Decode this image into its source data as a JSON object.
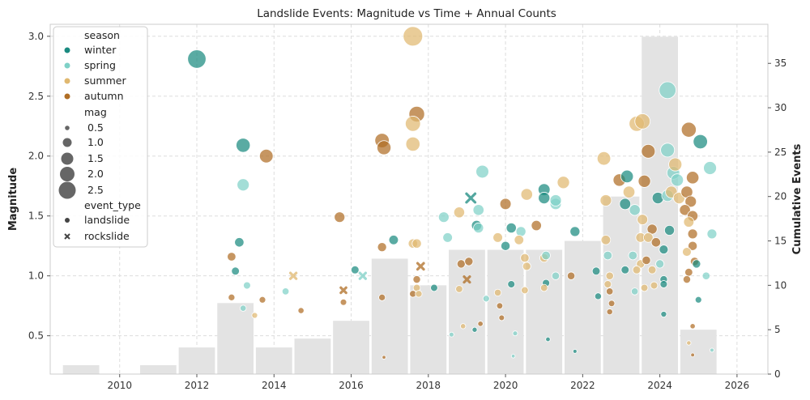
{
  "chart_data": {
    "type": "scatter",
    "title": "Landslide Events: Magnitude vs Time + Annual Counts",
    "xlabel": "",
    "ylabel": "Magnitude",
    "y2label": "Cumulative Events",
    "xlim": [
      2008.2,
      2026.8
    ],
    "ylim": [
      0.18,
      3.1
    ],
    "y2lim": [
      0,
      39.4
    ],
    "xticks": [
      "2010",
      "2012",
      "2014",
      "2016",
      "2018",
      "2020",
      "2022",
      "2024",
      "2026"
    ],
    "yticks": [
      "0.5",
      "1.0",
      "1.5",
      "2.0",
      "2.5",
      "3.0"
    ],
    "y2ticks": [
      "0",
      "5",
      "10",
      "15",
      "20",
      "25",
      "30",
      "35"
    ],
    "grid": true,
    "legend_position": "top-left",
    "colors": {
      "winter": "#1a8a80",
      "spring": "#7fd1c7",
      "summer": "#e0b870",
      "autumn": "#b06e25",
      "bars": "#e3e3e3",
      "size_legend": "#666666"
    },
    "legend": {
      "season_title": "season",
      "seasons": [
        "winter",
        "spring",
        "summer",
        "autumn"
      ],
      "mag_title": "mag",
      "mag_sizes": [
        "0.5",
        "1.0",
        "1.5",
        "2.0",
        "2.5"
      ],
      "event_type_title": "event_type",
      "event_types": [
        "landslide",
        "rockslide"
      ]
    },
    "bars": {
      "name": "Cumulative Events",
      "years": [
        2009,
        2010,
        2011,
        2012,
        2013,
        2014,
        2015,
        2016,
        2017,
        2018,
        2019,
        2020,
        2021,
        2022,
        2023,
        2024,
        2025
      ],
      "values": [
        1,
        0,
        1,
        3,
        8,
        3,
        4,
        6,
        13,
        10,
        14,
        14,
        14,
        15,
        20,
        38,
        5
      ]
    },
    "points": [
      {
        "x": 2012.0,
        "y": 2.81,
        "s": "winter",
        "t": "landslide"
      },
      {
        "x": 2013.2,
        "y": 2.09,
        "s": "winter",
        "t": "landslide"
      },
      {
        "x": 2013.2,
        "y": 1.76,
        "s": "spring",
        "t": "landslide"
      },
      {
        "x": 2013.8,
        "y": 2.0,
        "s": "autumn",
        "t": "landslide"
      },
      {
        "x": 2013.1,
        "y": 1.28,
        "s": "winter",
        "t": "landslide"
      },
      {
        "x": 2012.9,
        "y": 1.16,
        "s": "autumn",
        "t": "landslide"
      },
      {
        "x": 2013.0,
        "y": 1.04,
        "s": "winter",
        "t": "landslide"
      },
      {
        "x": 2013.3,
        "y": 0.92,
        "s": "spring",
        "t": "landslide"
      },
      {
        "x": 2012.9,
        "y": 0.82,
        "s": "autumn",
        "t": "landslide"
      },
      {
        "x": 2013.2,
        "y": 0.73,
        "s": "spring",
        "t": "landslide"
      },
      {
        "x": 2013.5,
        "y": 0.67,
        "s": "summer",
        "t": "landslide"
      },
      {
        "x": 2013.7,
        "y": 0.8,
        "s": "autumn",
        "t": "landslide"
      },
      {
        "x": 2014.3,
        "y": 0.87,
        "s": "spring",
        "t": "landslide"
      },
      {
        "x": 2014.5,
        "y": 1.0,
        "s": "summer",
        "t": "rockslide"
      },
      {
        "x": 2014.7,
        "y": 0.71,
        "s": "autumn",
        "t": "landslide"
      },
      {
        "x": 2015.7,
        "y": 1.49,
        "s": "autumn",
        "t": "landslide"
      },
      {
        "x": 2016.1,
        "y": 1.05,
        "s": "winter",
        "t": "landslide"
      },
      {
        "x": 2016.3,
        "y": 1.0,
        "s": "spring",
        "t": "rockslide"
      },
      {
        "x": 2015.8,
        "y": 0.88,
        "s": "autumn",
        "t": "rockslide"
      },
      {
        "x": 2015.8,
        "y": 0.78,
        "s": "autumn",
        "t": "landslide"
      },
      {
        "x": 2016.8,
        "y": 2.13,
        "s": "autumn",
        "t": "landslide"
      },
      {
        "x": 2016.85,
        "y": 2.07,
        "s": "autumn",
        "t": "landslide"
      },
      {
        "x": 2016.8,
        "y": 1.24,
        "s": "autumn",
        "t": "landslide"
      },
      {
        "x": 2017.1,
        "y": 1.3,
        "s": "winter",
        "t": "landslide"
      },
      {
        "x": 2016.8,
        "y": 0.82,
        "s": "autumn",
        "t": "landslide"
      },
      {
        "x": 2016.85,
        "y": 0.32,
        "s": "autumn",
        "t": "landslide"
      },
      {
        "x": 2017.6,
        "y": 3.0,
        "s": "summer",
        "t": "landslide"
      },
      {
        "x": 2017.7,
        "y": 2.35,
        "s": "autumn",
        "t": "landslide"
      },
      {
        "x": 2017.6,
        "y": 2.27,
        "s": "summer",
        "t": "landslide"
      },
      {
        "x": 2017.6,
        "y": 2.1,
        "s": "summer",
        "t": "landslide"
      },
      {
        "x": 2017.6,
        "y": 1.27,
        "s": "summer",
        "t": "landslide"
      },
      {
        "x": 2017.7,
        "y": 1.27,
        "s": "summer",
        "t": "landslide"
      },
      {
        "x": 2017.8,
        "y": 1.08,
        "s": "autumn",
        "t": "rockslide"
      },
      {
        "x": 2017.7,
        "y": 0.97,
        "s": "autumn",
        "t": "landslide"
      },
      {
        "x": 2017.7,
        "y": 0.9,
        "s": "summer",
        "t": "landslide"
      },
      {
        "x": 2017.6,
        "y": 0.85,
        "s": "autumn",
        "t": "landslide"
      },
      {
        "x": 2017.75,
        "y": 0.85,
        "s": "summer",
        "t": "landslide"
      },
      {
        "x": 2018.15,
        "y": 0.9,
        "s": "winter",
        "t": "landslide"
      },
      {
        "x": 2018.4,
        "y": 1.49,
        "s": "spring",
        "t": "landslide"
      },
      {
        "x": 2018.8,
        "y": 1.53,
        "s": "summer",
        "t": "landslide"
      },
      {
        "x": 2018.5,
        "y": 1.32,
        "s": "spring",
        "t": "landslide"
      },
      {
        "x": 2018.85,
        "y": 1.1,
        "s": "autumn",
        "t": "landslide"
      },
      {
        "x": 2019.05,
        "y": 1.12,
        "s": "autumn",
        "t": "landslide"
      },
      {
        "x": 2019.0,
        "y": 0.97,
        "s": "autumn",
        "t": "rockslide"
      },
      {
        "x": 2018.8,
        "y": 0.89,
        "s": "summer",
        "t": "landslide"
      },
      {
        "x": 2018.9,
        "y": 0.58,
        "s": "summer",
        "t": "landslide"
      },
      {
        "x": 2018.6,
        "y": 0.51,
        "s": "spring",
        "t": "landslide"
      },
      {
        "x": 2019.1,
        "y": 1.65,
        "s": "winter",
        "t": "rockslide"
      },
      {
        "x": 2019.4,
        "y": 1.87,
        "s": "spring",
        "t": "landslide"
      },
      {
        "x": 2019.3,
        "y": 1.55,
        "s": "spring",
        "t": "landslide"
      },
      {
        "x": 2019.25,
        "y": 1.42,
        "s": "winter",
        "t": "landslide"
      },
      {
        "x": 2019.3,
        "y": 1.4,
        "s": "spring",
        "t": "landslide"
      },
      {
        "x": 2019.8,
        "y": 1.32,
        "s": "summer",
        "t": "landslide"
      },
      {
        "x": 2019.5,
        "y": 0.81,
        "s": "spring",
        "t": "landslide"
      },
      {
        "x": 2019.2,
        "y": 0.55,
        "s": "winter",
        "t": "landslide"
      },
      {
        "x": 2019.35,
        "y": 0.6,
        "s": "autumn",
        "t": "landslide"
      },
      {
        "x": 2019.8,
        "y": 0.86,
        "s": "summer",
        "t": "landslide"
      },
      {
        "x": 2019.85,
        "y": 0.75,
        "s": "autumn",
        "t": "landslide"
      },
      {
        "x": 2019.9,
        "y": 0.65,
        "s": "autumn",
        "t": "landslide"
      },
      {
        "x": 2020.0,
        "y": 1.6,
        "s": "autumn",
        "t": "landslide"
      },
      {
        "x": 2020.15,
        "y": 1.4,
        "s": "winter",
        "t": "landslide"
      },
      {
        "x": 2020.4,
        "y": 1.37,
        "s": "spring",
        "t": "landslide"
      },
      {
        "x": 2020.35,
        "y": 1.3,
        "s": "summer",
        "t": "landslide"
      },
      {
        "x": 2020.0,
        "y": 1.25,
        "s": "winter",
        "t": "landslide"
      },
      {
        "x": 2020.5,
        "y": 1.15,
        "s": "summer",
        "t": "landslide"
      },
      {
        "x": 2020.55,
        "y": 1.08,
        "s": "summer",
        "t": "landslide"
      },
      {
        "x": 2020.15,
        "y": 0.93,
        "s": "winter",
        "t": "landslide"
      },
      {
        "x": 2020.5,
        "y": 0.88,
        "s": "summer",
        "t": "landslide"
      },
      {
        "x": 2020.25,
        "y": 0.52,
        "s": "spring",
        "t": "landslide"
      },
      {
        "x": 2020.2,
        "y": 0.33,
        "s": "spring",
        "t": "landslide"
      },
      {
        "x": 2020.55,
        "y": 1.68,
        "s": "summer",
        "t": "landslide"
      },
      {
        "x": 2021.0,
        "y": 1.72,
        "s": "winter",
        "t": "landslide"
      },
      {
        "x": 2021.0,
        "y": 1.65,
        "s": "winter",
        "t": "landslide"
      },
      {
        "x": 2021.3,
        "y": 1.6,
        "s": "spring",
        "t": "landslide"
      },
      {
        "x": 2021.3,
        "y": 1.63,
        "s": "spring",
        "t": "landslide"
      },
      {
        "x": 2020.8,
        "y": 1.42,
        "s": "autumn",
        "t": "landslide"
      },
      {
        "x": 2021.0,
        "y": 1.15,
        "s": "summer",
        "t": "landslide"
      },
      {
        "x": 2021.05,
        "y": 1.17,
        "s": "spring",
        "t": "landslide"
      },
      {
        "x": 2021.05,
        "y": 0.94,
        "s": "winter",
        "t": "landslide"
      },
      {
        "x": 2021.3,
        "y": 1.0,
        "s": "spring",
        "t": "landslide"
      },
      {
        "x": 2021.7,
        "y": 1.0,
        "s": "autumn",
        "t": "landslide"
      },
      {
        "x": 2021.0,
        "y": 0.9,
        "s": "summer",
        "t": "landslide"
      },
      {
        "x": 2021.1,
        "y": 0.47,
        "s": "winter",
        "t": "landslide"
      },
      {
        "x": 2021.5,
        "y": 1.78,
        "s": "summer",
        "t": "landslide"
      },
      {
        "x": 2021.8,
        "y": 1.37,
        "s": "winter",
        "t": "landslide"
      },
      {
        "x": 2021.8,
        "y": 0.37,
        "s": "winter",
        "t": "landslide"
      },
      {
        "x": 2022.55,
        "y": 1.98,
        "s": "summer",
        "t": "landslide"
      },
      {
        "x": 2022.95,
        "y": 1.8,
        "s": "autumn",
        "t": "landslide"
      },
      {
        "x": 2023.15,
        "y": 1.83,
        "s": "winter",
        "t": "landslide"
      },
      {
        "x": 2023.2,
        "y": 1.7,
        "s": "summer",
        "t": "landslide"
      },
      {
        "x": 2022.6,
        "y": 1.63,
        "s": "summer",
        "t": "landslide"
      },
      {
        "x": 2023.1,
        "y": 1.6,
        "s": "winter",
        "t": "landslide"
      },
      {
        "x": 2022.6,
        "y": 1.3,
        "s": "summer",
        "t": "landslide"
      },
      {
        "x": 2022.65,
        "y": 1.17,
        "s": "spring",
        "t": "landslide"
      },
      {
        "x": 2022.35,
        "y": 1.04,
        "s": "winter",
        "t": "landslide"
      },
      {
        "x": 2022.7,
        "y": 1.0,
        "s": "summer",
        "t": "landslide"
      },
      {
        "x": 2022.65,
        "y": 0.93,
        "s": "summer",
        "t": "landslide"
      },
      {
        "x": 2022.7,
        "y": 0.87,
        "s": "autumn",
        "t": "landslide"
      },
      {
        "x": 2022.75,
        "y": 0.77,
        "s": "autumn",
        "t": "landslide"
      },
      {
        "x": 2022.7,
        "y": 0.7,
        "s": "autumn",
        "t": "landslide"
      },
      {
        "x": 2022.4,
        "y": 0.83,
        "s": "winter",
        "t": "landslide"
      },
      {
        "x": 2023.1,
        "y": 1.05,
        "s": "winter",
        "t": "landslide"
      },
      {
        "x": 2023.4,
        "y": 2.27,
        "s": "summer",
        "t": "landslide"
      },
      {
        "x": 2023.55,
        "y": 2.29,
        "s": "summer",
        "t": "landslide"
      },
      {
        "x": 2023.7,
        "y": 2.04,
        "s": "autumn",
        "t": "landslide"
      },
      {
        "x": 2023.6,
        "y": 1.79,
        "s": "autumn",
        "t": "landslide"
      },
      {
        "x": 2023.95,
        "y": 1.65,
        "s": "winter",
        "t": "landslide"
      },
      {
        "x": 2023.35,
        "y": 1.55,
        "s": "spring",
        "t": "landslide"
      },
      {
        "x": 2023.55,
        "y": 1.47,
        "s": "summer",
        "t": "landslide"
      },
      {
        "x": 2023.8,
        "y": 1.39,
        "s": "autumn",
        "t": "landslide"
      },
      {
        "x": 2023.5,
        "y": 1.32,
        "s": "summer",
        "t": "landslide"
      },
      {
        "x": 2023.7,
        "y": 1.32,
        "s": "summer",
        "t": "landslide"
      },
      {
        "x": 2023.9,
        "y": 1.28,
        "s": "autumn",
        "t": "landslide"
      },
      {
        "x": 2023.3,
        "y": 1.17,
        "s": "spring",
        "t": "landslide"
      },
      {
        "x": 2023.5,
        "y": 1.1,
        "s": "summer",
        "t": "landslide"
      },
      {
        "x": 2023.65,
        "y": 1.13,
        "s": "autumn",
        "t": "landslide"
      },
      {
        "x": 2023.4,
        "y": 1.05,
        "s": "summer",
        "t": "landslide"
      },
      {
        "x": 2023.8,
        "y": 1.05,
        "s": "summer",
        "t": "landslide"
      },
      {
        "x": 2023.6,
        "y": 0.9,
        "s": "summer",
        "t": "landslide"
      },
      {
        "x": 2023.85,
        "y": 0.92,
        "s": "summer",
        "t": "landslide"
      },
      {
        "x": 2023.35,
        "y": 0.87,
        "s": "spring",
        "t": "landslide"
      },
      {
        "x": 2024.2,
        "y": 2.55,
        "s": "spring",
        "t": "landslide"
      },
      {
        "x": 2024.2,
        "y": 2.05,
        "s": "spring",
        "t": "landslide"
      },
      {
        "x": 2024.35,
        "y": 1.86,
        "s": "spring",
        "t": "landslide"
      },
      {
        "x": 2024.4,
        "y": 1.93,
        "s": "summer",
        "t": "landslide"
      },
      {
        "x": 2024.45,
        "y": 1.8,
        "s": "spring",
        "t": "landslide"
      },
      {
        "x": 2024.2,
        "y": 1.67,
        "s": "spring",
        "t": "landslide"
      },
      {
        "x": 2024.3,
        "y": 1.7,
        "s": "summer",
        "t": "landslide"
      },
      {
        "x": 2024.5,
        "y": 1.65,
        "s": "summer",
        "t": "landslide"
      },
      {
        "x": 2024.25,
        "y": 1.38,
        "s": "winter",
        "t": "landslide"
      },
      {
        "x": 2024.1,
        "y": 1.22,
        "s": "winter",
        "t": "landslide"
      },
      {
        "x": 2024.0,
        "y": 1.1,
        "s": "spring",
        "t": "landslide"
      },
      {
        "x": 2024.1,
        "y": 0.97,
        "s": "winter",
        "t": "landslide"
      },
      {
        "x": 2024.1,
        "y": 0.93,
        "s": "winter",
        "t": "landslide"
      },
      {
        "x": 2024.1,
        "y": 0.68,
        "s": "winter",
        "t": "landslide"
      },
      {
        "x": 2024.75,
        "y": 2.22,
        "s": "autumn",
        "t": "landslide"
      },
      {
        "x": 2024.85,
        "y": 1.82,
        "s": "autumn",
        "t": "landslide"
      },
      {
        "x": 2024.7,
        "y": 1.7,
        "s": "autumn",
        "t": "landslide"
      },
      {
        "x": 2024.8,
        "y": 1.62,
        "s": "autumn",
        "t": "landslide"
      },
      {
        "x": 2024.65,
        "y": 1.55,
        "s": "autumn",
        "t": "landslide"
      },
      {
        "x": 2024.85,
        "y": 1.5,
        "s": "autumn",
        "t": "landslide"
      },
      {
        "x": 2024.75,
        "y": 1.45,
        "s": "summer",
        "t": "landslide"
      },
      {
        "x": 2024.85,
        "y": 1.35,
        "s": "autumn",
        "t": "landslide"
      },
      {
        "x": 2024.85,
        "y": 1.25,
        "s": "autumn",
        "t": "landslide"
      },
      {
        "x": 2024.7,
        "y": 1.2,
        "s": "summer",
        "t": "landslide"
      },
      {
        "x": 2024.9,
        "y": 1.12,
        "s": "autumn",
        "t": "landslide"
      },
      {
        "x": 2024.95,
        "y": 1.1,
        "s": "winter",
        "t": "landslide"
      },
      {
        "x": 2024.75,
        "y": 1.03,
        "s": "autumn",
        "t": "landslide"
      },
      {
        "x": 2024.7,
        "y": 0.97,
        "s": "autumn",
        "t": "landslide"
      },
      {
        "x": 2024.85,
        "y": 0.58,
        "s": "autumn",
        "t": "landslide"
      },
      {
        "x": 2024.75,
        "y": 0.44,
        "s": "summer",
        "t": "landslide"
      },
      {
        "x": 2024.85,
        "y": 0.34,
        "s": "autumn",
        "t": "landslide"
      },
      {
        "x": 2025.0,
        "y": 0.8,
        "s": "winter",
        "t": "landslide"
      },
      {
        "x": 2025.05,
        "y": 2.12,
        "s": "winter",
        "t": "landslide"
      },
      {
        "x": 2025.3,
        "y": 1.9,
        "s": "spring",
        "t": "landslide"
      },
      {
        "x": 2025.35,
        "y": 1.35,
        "s": "spring",
        "t": "landslide"
      },
      {
        "x": 2025.2,
        "y": 1.0,
        "s": "spring",
        "t": "landslide"
      },
      {
        "x": 2025.35,
        "y": 0.38,
        "s": "spring",
        "t": "landslide"
      }
    ]
  }
}
